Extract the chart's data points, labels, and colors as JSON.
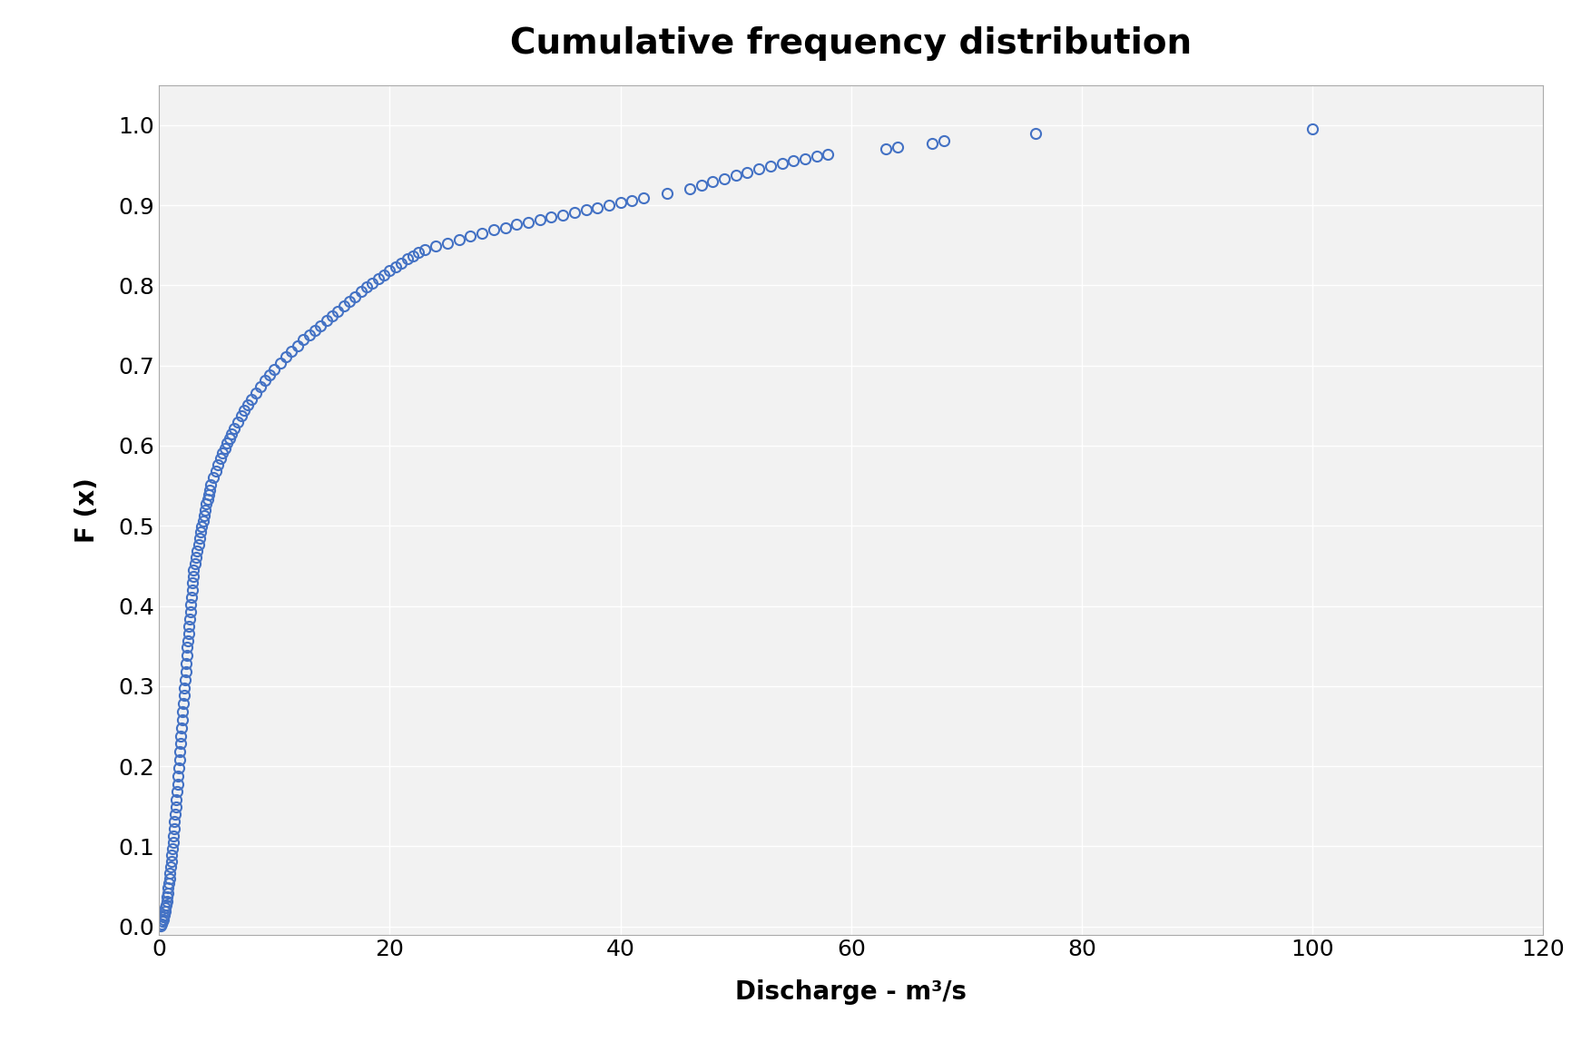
{
  "title": "Cumulative frequency distribution",
  "xlabel": "Discharge - m³/s",
  "ylabel": "F (x)",
  "xlim": [
    0,
    120
  ],
  "ylim": [
    -0.01,
    1.05
  ],
  "xticks": [
    0,
    20,
    40,
    60,
    80,
    100,
    120
  ],
  "yticks": [
    0.0,
    0.1,
    0.2,
    0.3,
    0.4,
    0.5,
    0.6,
    0.7,
    0.8,
    0.9,
    1.0
  ],
  "marker_color": "#4472C4",
  "marker_size": 8,
  "marker_linewidth": 1.5,
  "title_fontsize": 28,
  "label_fontsize": 20,
  "tick_fontsize": 18,
  "background_color": "#ffffff",
  "plot_bg_color": "#f2f2f2",
  "grid_color": "#ffffff",
  "x_data": [
    0.1,
    0.2,
    0.3,
    0.35,
    0.4,
    0.45,
    0.5,
    0.55,
    0.6,
    0.65,
    0.7,
    0.75,
    0.8,
    0.85,
    0.9,
    0.95,
    1.0,
    1.05,
    1.1,
    1.15,
    1.2,
    1.25,
    1.3,
    1.35,
    1.4,
    1.45,
    1.5,
    1.55,
    1.6,
    1.65,
    1.7,
    1.75,
    1.8,
    1.85,
    1.9,
    1.95,
    2.0,
    2.05,
    2.1,
    2.15,
    2.2,
    2.25,
    2.3,
    2.35,
    2.4,
    2.45,
    2.5,
    2.55,
    2.6,
    2.65,
    2.7,
    2.75,
    2.8,
    2.85,
    2.9,
    2.95,
    3.0,
    3.1,
    3.2,
    3.3,
    3.4,
    3.5,
    3.6,
    3.7,
    3.8,
    3.9,
    4.0,
    4.1,
    4.2,
    4.3,
    4.4,
    4.5,
    4.7,
    4.9,
    5.1,
    5.3,
    5.5,
    5.7,
    5.9,
    6.1,
    6.3,
    6.5,
    6.8,
    7.1,
    7.4,
    7.7,
    8.0,
    8.4,
    8.8,
    9.2,
    9.6,
    10.0,
    10.5,
    11.0,
    11.5,
    12.0,
    12.5,
    13.0,
    13.5,
    14.0,
    14.5,
    15.0,
    15.5,
    16.0,
    16.5,
    17.0,
    17.5,
    18.0,
    18.5,
    19.0,
    19.5,
    20.0,
    20.5,
    21.0,
    21.5,
    22.0,
    22.5,
    23.0,
    24.0,
    25.0,
    26.0,
    27.0,
    28.0,
    29.0,
    30.0,
    31.0,
    32.0,
    33.0,
    34.0,
    35.0,
    36.0,
    37.0,
    38.0,
    39.0,
    40.0,
    41.0,
    42.0,
    44.0,
    46.0,
    47.0,
    48.0,
    49.0,
    50.0,
    51.0,
    52.0,
    53.0,
    54.0,
    55.0,
    56.0,
    57.0,
    58.0,
    63.0,
    64.0,
    67.0,
    68.0,
    76.0,
    100.0
  ],
  "y_data": [
    0.001,
    0.003,
    0.006,
    0.009,
    0.012,
    0.015,
    0.019,
    0.023,
    0.027,
    0.032,
    0.037,
    0.042,
    0.048,
    0.054,
    0.06,
    0.067,
    0.074,
    0.081,
    0.089,
    0.097,
    0.105,
    0.113,
    0.122,
    0.131,
    0.14,
    0.149,
    0.158,
    0.168,
    0.178,
    0.188,
    0.198,
    0.208,
    0.218,
    0.228,
    0.238,
    0.248,
    0.258,
    0.268,
    0.278,
    0.288,
    0.298,
    0.308,
    0.318,
    0.328,
    0.338,
    0.348,
    0.357,
    0.366,
    0.375,
    0.384,
    0.393,
    0.402,
    0.411,
    0.42,
    0.429,
    0.437,
    0.445,
    0.453,
    0.461,
    0.469,
    0.477,
    0.485,
    0.492,
    0.499,
    0.506,
    0.513,
    0.52,
    0.527,
    0.533,
    0.539,
    0.545,
    0.551,
    0.56,
    0.568,
    0.576,
    0.584,
    0.591,
    0.597,
    0.603,
    0.609,
    0.615,
    0.621,
    0.629,
    0.637,
    0.644,
    0.651,
    0.658,
    0.666,
    0.674,
    0.681,
    0.688,
    0.695,
    0.703,
    0.711,
    0.718,
    0.725,
    0.732,
    0.738,
    0.744,
    0.75,
    0.756,
    0.762,
    0.768,
    0.774,
    0.78,
    0.786,
    0.792,
    0.798,
    0.803,
    0.808,
    0.813,
    0.818,
    0.823,
    0.828,
    0.833,
    0.837,
    0.841,
    0.845,
    0.849,
    0.853,
    0.857,
    0.861,
    0.865,
    0.869,
    0.872,
    0.876,
    0.879,
    0.882,
    0.885,
    0.888,
    0.891,
    0.894,
    0.897,
    0.9,
    0.903,
    0.906,
    0.909,
    0.915,
    0.921,
    0.925,
    0.929,
    0.933,
    0.937,
    0.941,
    0.945,
    0.949,
    0.952,
    0.955,
    0.958,
    0.961,
    0.964,
    0.97,
    0.973,
    0.977,
    0.98,
    0.99,
    0.995
  ]
}
